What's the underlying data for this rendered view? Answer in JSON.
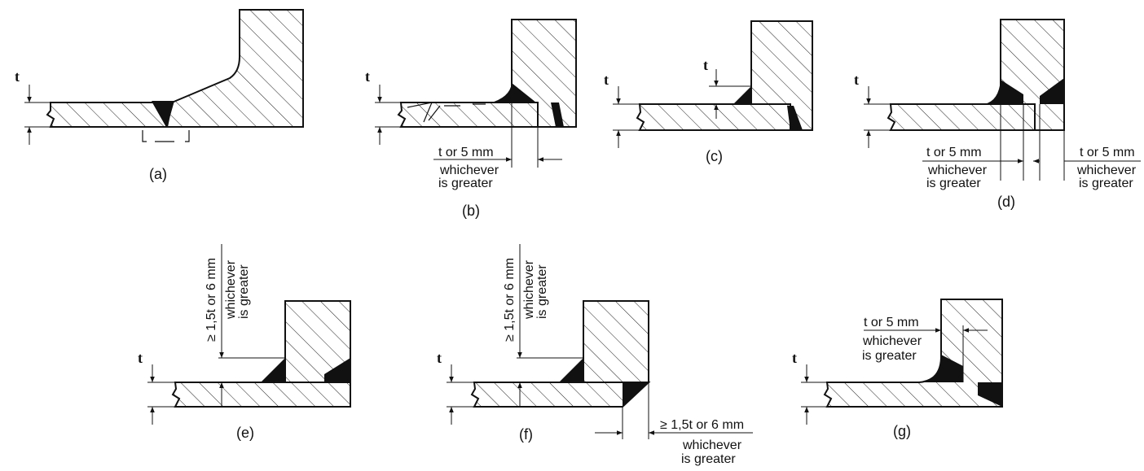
{
  "labels": {
    "a": "(a)",
    "b": "(b)",
    "c": "(c)",
    "d": "(d)",
    "e": "(e)",
    "f": "(f)",
    "g": "(g)"
  },
  "t": "t",
  "t_or_5": "t or 5 mm",
  "whichever": "whichever",
  "is_greater": "is greater",
  "ge_15t_6": "≥ 1,5t or 6 mm"
}
